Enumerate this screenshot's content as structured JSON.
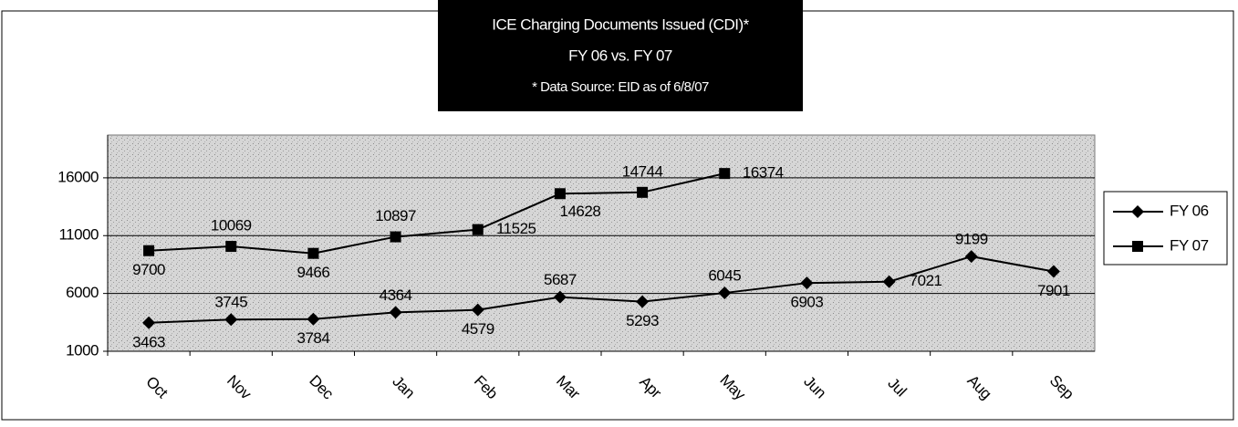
{
  "chart_data": {
    "type": "line",
    "title": [
      "ICE Charging Documents Issued (CDI)*",
      "FY 06 vs. FY 07",
      "* Data Source: EID as of 6/8/07"
    ],
    "categories": [
      "Oct",
      "Nov",
      "Dec",
      "Jan",
      "Feb",
      "Mar",
      "Apr",
      "May",
      "Jun",
      "Jul",
      "Aug",
      "Sep"
    ],
    "series": [
      {
        "name": "FY 06",
        "color": "#000000",
        "marker": "diamond",
        "values": [
          3463,
          3745,
          3784,
          4364,
          4579,
          5687,
          5293,
          6045,
          6903,
          7021,
          9199,
          7901
        ]
      },
      {
        "name": "FY 07",
        "color": "#000000",
        "marker": "square",
        "values": [
          9700,
          10069,
          9466,
          10897,
          11525,
          14628,
          14744,
          16374,
          null,
          null,
          null,
          null
        ]
      }
    ],
    "ylim": [
      1000,
      19700
    ],
    "yticks": [
      1000,
      6000,
      11000,
      16000
    ],
    "grid": true,
    "legend": "right"
  }
}
